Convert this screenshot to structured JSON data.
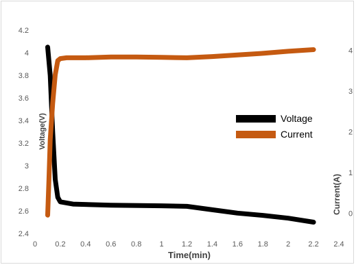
{
  "chart_data": {
    "type": "line",
    "xlabel": "Time(min)",
    "ylabel": "Voltage(V)",
    "y2label": "Current(A)",
    "xlim": [
      0,
      2.4
    ],
    "ylim": [
      2.4,
      4.2
    ],
    "y2lim": [
      -0.5,
      4.5
    ],
    "x_ticks": [
      "0",
      "0.2",
      "0.4",
      "0.6",
      "0.8",
      "1",
      "1.2",
      "1.4",
      "1.6",
      "1.8",
      "2",
      "2.2",
      "2.4"
    ],
    "y_ticks": [
      "2.4",
      "2.6",
      "2.8",
      "3",
      "3.2",
      "3.4",
      "3.6",
      "3.8",
      "4",
      "4.2"
    ],
    "y2_ticks": [
      "0",
      "1",
      "2",
      "3",
      "4"
    ],
    "grid": false,
    "legend_position": "right-center",
    "series": [
      {
        "name": "Voltage",
        "axis": "left",
        "color": "#000000",
        "points": [
          [
            0.1,
            4.05
          ],
          [
            0.12,
            3.8
          ],
          [
            0.14,
            3.3
          ],
          [
            0.16,
            2.88
          ],
          [
            0.18,
            2.72
          ],
          [
            0.2,
            2.68
          ],
          [
            0.3,
            2.66
          ],
          [
            0.6,
            2.65
          ],
          [
            1.0,
            2.645
          ],
          [
            1.2,
            2.64
          ],
          [
            1.4,
            2.61
          ],
          [
            1.6,
            2.58
          ],
          [
            1.8,
            2.56
          ],
          [
            2.0,
            2.535
          ],
          [
            2.2,
            2.5
          ]
        ]
      },
      {
        "name": "Current",
        "axis": "right",
        "color": "#c55a11",
        "points": [
          [
            0.1,
            -0.05
          ],
          [
            0.11,
            0.8
          ],
          [
            0.12,
            1.8
          ],
          [
            0.14,
            2.7
          ],
          [
            0.16,
            3.4
          ],
          [
            0.18,
            3.75
          ],
          [
            0.2,
            3.8
          ],
          [
            0.25,
            3.82
          ],
          [
            0.4,
            3.82
          ],
          [
            0.6,
            3.84
          ],
          [
            0.8,
            3.84
          ],
          [
            1.0,
            3.83
          ],
          [
            1.2,
            3.82
          ],
          [
            1.4,
            3.85
          ],
          [
            1.6,
            3.89
          ],
          [
            1.8,
            3.93
          ],
          [
            2.0,
            3.98
          ],
          [
            2.2,
            4.02
          ]
        ]
      }
    ]
  }
}
